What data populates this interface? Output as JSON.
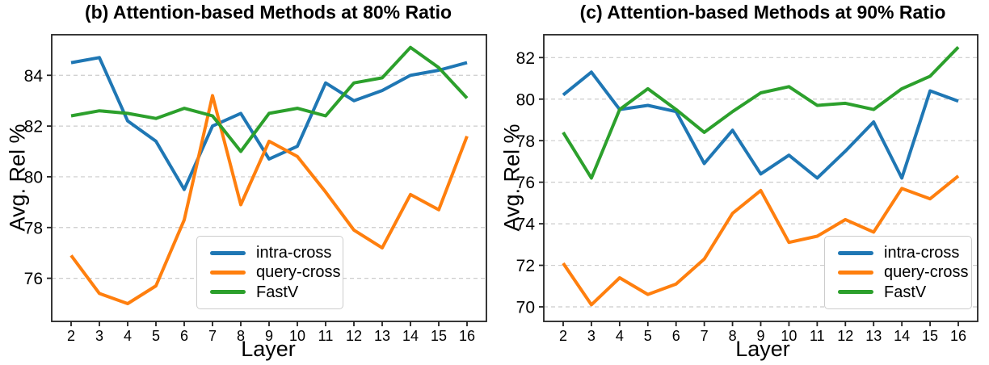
{
  "figure": {
    "background_color": "#ffffff",
    "text_color": "#000000",
    "spine_color": "#222222",
    "grid_color": "#cccccc"
  },
  "chart_data": [
    {
      "type": "line",
      "title": "(b) Attention-based Methods at 80% Ratio",
      "xlabel": "Layer",
      "ylabel": "Avg. Rel %",
      "x": [
        2,
        3,
        4,
        5,
        6,
        7,
        8,
        9,
        10,
        11,
        12,
        13,
        14,
        15,
        16
      ],
      "xticks": [
        2,
        3,
        4,
        5,
        6,
        7,
        8,
        9,
        10,
        11,
        12,
        13,
        14,
        15,
        16
      ],
      "yticks": [
        76,
        78,
        80,
        82,
        84
      ],
      "ylim": [
        74.3,
        85.6
      ],
      "grid": "horizontal-dashed",
      "legend_position": "bottom-center",
      "series": [
        {
          "name": "intra-cross",
          "color": "#1f77b4",
          "values": [
            84.5,
            84.7,
            82.2,
            81.4,
            79.5,
            82.0,
            82.5,
            80.7,
            81.2,
            83.7,
            83.0,
            83.4,
            84.0,
            84.2,
            84.5
          ]
        },
        {
          "name": "query-cross",
          "color": "#ff7f0e",
          "values": [
            76.9,
            75.4,
            75.0,
            75.7,
            78.3,
            83.2,
            78.9,
            81.4,
            80.8,
            79.4,
            77.9,
            77.2,
            79.3,
            78.7,
            81.6
          ]
        },
        {
          "name": "FastV",
          "color": "#2ca02c",
          "values": [
            82.4,
            82.6,
            82.5,
            82.3,
            82.7,
            82.4,
            81.0,
            82.5,
            82.7,
            82.4,
            83.7,
            83.9,
            85.1,
            84.3,
            83.1
          ]
        }
      ]
    },
    {
      "type": "line",
      "title": "(c) Attention-based Methods at 90% Ratio",
      "xlabel": "Layer",
      "ylabel": "Avg. Rel %",
      "x": [
        2,
        3,
        4,
        5,
        6,
        7,
        8,
        9,
        10,
        11,
        12,
        13,
        14,
        15,
        16
      ],
      "xticks": [
        2,
        3,
        4,
        5,
        6,
        7,
        8,
        9,
        10,
        11,
        12,
        13,
        14,
        15,
        16
      ],
      "yticks": [
        70,
        72,
        74,
        76,
        78,
        80,
        82
      ],
      "ylim": [
        69.3,
        83.1
      ],
      "grid": "horizontal-dashed",
      "legend_position": "bottom-right",
      "series": [
        {
          "name": "intra-cross",
          "color": "#1f77b4",
          "values": [
            80.2,
            81.3,
            79.5,
            79.7,
            79.4,
            76.9,
            78.5,
            76.4,
            77.3,
            76.2,
            77.5,
            78.9,
            76.2,
            80.4,
            79.9
          ]
        },
        {
          "name": "query-cross",
          "color": "#ff7f0e",
          "values": [
            72.1,
            70.1,
            71.4,
            70.6,
            71.1,
            72.3,
            74.5,
            75.6,
            73.1,
            73.4,
            74.2,
            73.6,
            75.7,
            75.2,
            76.3
          ]
        },
        {
          "name": "FastV",
          "color": "#2ca02c",
          "values": [
            78.4,
            76.2,
            79.5,
            80.5,
            79.5,
            78.4,
            79.4,
            80.3,
            80.6,
            79.7,
            79.8,
            79.5,
            80.5,
            81.1,
            82.5
          ]
        }
      ]
    }
  ]
}
